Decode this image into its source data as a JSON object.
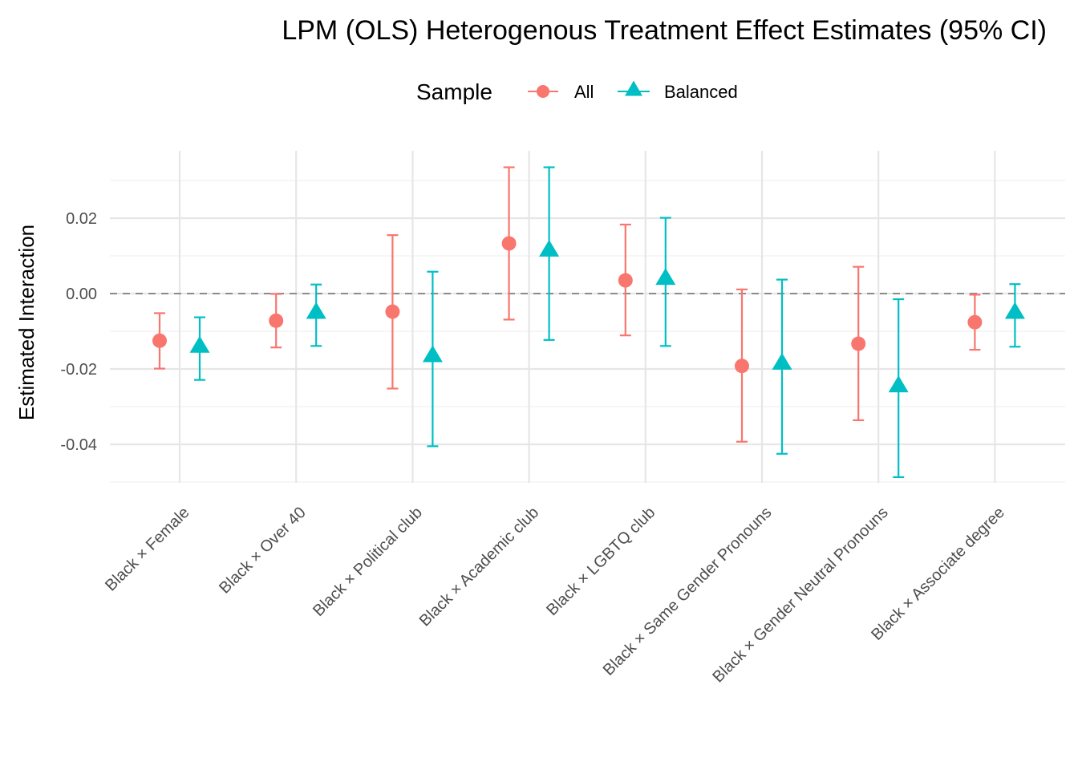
{
  "chart_data": {
    "type": "scatter",
    "title": "LPM (OLS) Heterogenous Treatment Effect Estimates (95% CI)",
    "xlabel": "",
    "ylabel": "Estimated Interaction",
    "ylim": [
      -0.0505,
      0.0375
    ],
    "yticks": [
      -0.04,
      -0.02,
      0.0,
      0.02
    ],
    "ytick_labels": [
      "-0.04",
      "-0.02",
      "0.00",
      "0.02"
    ],
    "reference_line": {
      "y": 0,
      "style": "dashed"
    },
    "legend": {
      "title": "Sample",
      "position": "top"
    },
    "categories": [
      "Black × Female",
      "Black × Over 40",
      "Black × Political club",
      "Black × Academic club",
      "Black × LGBTQ club",
      "Black × Same Gender Pronouns",
      "Black × Gender Neutral Pronouns",
      "Black × Associate degree"
    ],
    "series": [
      {
        "name": "All",
        "color": "#F8766D",
        "marker": "circle",
        "estimate": [
          -0.0125,
          -0.0072,
          -0.0048,
          0.0133,
          0.0035,
          -0.0192,
          -0.0133,
          -0.0076
        ],
        "ci_low": [
          -0.0199,
          -0.0143,
          -0.0252,
          -0.0069,
          -0.0111,
          -0.0393,
          -0.0336,
          -0.0149
        ],
        "ci_high": [
          -0.0052,
          -0.0001,
          0.0155,
          0.0335,
          0.0183,
          0.0011,
          0.0071,
          -0.0003
        ]
      },
      {
        "name": "Balanced",
        "color": "#00BFC4",
        "marker": "triangle",
        "estimate": [
          -0.014,
          -0.005,
          -0.0165,
          0.0115,
          0.004,
          -0.0185,
          -0.0245,
          -0.005
        ],
        "ci_low": [
          -0.0229,
          -0.0139,
          -0.0405,
          -0.0123,
          -0.0139,
          -0.0425,
          -0.0487,
          -0.0141
        ],
        "ci_high": [
          -0.0063,
          0.0024,
          0.0058,
          0.0335,
          0.0201,
          0.0037,
          -0.0015,
          0.0025
        ]
      }
    ]
  }
}
